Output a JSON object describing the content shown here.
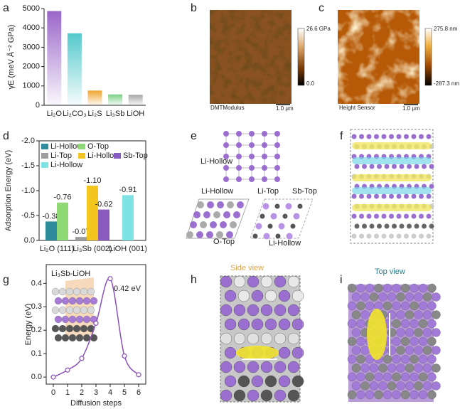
{
  "chart_data": [
    {
      "type": "bar",
      "panel_label": "a",
      "ylabel": "γE (meV Å⁻² GPa)",
      "categories": [
        "Li₂O",
        "Li₂CO₃",
        "Li₂S",
        "Li₃Sb",
        "LiOH"
      ],
      "values": [
        4870,
        3720,
        760,
        560,
        540
      ],
      "colors": [
        "#9a66c9",
        "#54c9cc",
        "#f0a531",
        "#7ccf86",
        "#a6a6a6"
      ],
      "ylim": [
        0,
        5000
      ],
      "yticks": [
        0,
        1000,
        2000,
        3000,
        4000,
        5000
      ]
    },
    {
      "type": "grouped_bar",
      "panel_label": "d",
      "ylabel": "Adsorption Energy (eV)",
      "categories": [
        "Li₂O (111)",
        "Li₃Sb (002)",
        "LiOH (001)"
      ],
      "series": [
        {
          "name": "Li-Hollow",
          "color": "#2e8c9c",
          "values": [
            -0.38,
            null,
            null
          ],
          "value_labels": [
            "-0.38",
            null,
            null
          ]
        },
        {
          "name": "O-Top",
          "color": "#8fd977",
          "values": [
            -0.76,
            null,
            null
          ],
          "value_labels": [
            "-0.76",
            null,
            null
          ]
        },
        {
          "name": "Li-Top",
          "color": "#9e9e9e",
          "values": [
            null,
            -0.07,
            null
          ],
          "value_labels": [
            null,
            "-0.07",
            null
          ]
        },
        {
          "name": "Li-Hollow",
          "color": "#f2c61f",
          "values": [
            null,
            -1.1,
            null
          ],
          "value_labels": [
            null,
            "-1.10",
            null
          ]
        },
        {
          "name": "Sb-Top",
          "color": "#8a5bbf",
          "values": [
            null,
            -0.62,
            null
          ],
          "value_labels": [
            null,
            "-0.62",
            null
          ]
        },
        {
          "name": "Li-Hollow",
          "color": "#7fe3e3",
          "values": [
            null,
            null,
            -0.91
          ],
          "value_labels": [
            null,
            null,
            "-0.91"
          ]
        }
      ],
      "ylim": [
        0,
        -2.0
      ],
      "yticks": [
        {
          "value": 0,
          "label": "0.0"
        },
        {
          "value": -0.5,
          "label": "-0.5"
        },
        {
          "value": -1,
          "label": "-1.0"
        },
        {
          "value": -1.5,
          "label": "-1.5"
        },
        {
          "value": -2,
          "label": "-2.0"
        }
      ],
      "legend": "upper left"
    },
    {
      "type": "line",
      "panel_label": "g",
      "title": "Li₃Sb-LiOH",
      "annotation": "0.42 eV",
      "xlabel": "Diffusion steps",
      "ylabel": "Energy (eV)",
      "x": [
        0,
        1,
        2,
        3,
        4,
        5,
        6
      ],
      "values": [
        0.0,
        0.03,
        0.08,
        0.23,
        0.42,
        0.09,
        0.01
      ],
      "color": "#8a4fb8",
      "xlim": [
        -0.5,
        6.5
      ],
      "ylim": [
        -0.03,
        0.48
      ],
      "xticks": [
        0,
        1,
        2,
        3,
        4,
        5,
        6
      ],
      "yticks": [
        {
          "value": 0,
          "label": "0.0"
        },
        {
          "value": 0.1,
          "label": "0.1"
        },
        {
          "value": 0.2,
          "label": "0.2"
        },
        {
          "value": 0.3,
          "label": "0.3"
        },
        {
          "value": 0.4,
          "label": "0.4"
        }
      ]
    }
  ],
  "images": {
    "b": {
      "panel_label": "b",
      "colorbar_max": "26.6 GPa",
      "colorbar_min": "0.0",
      "channel": "DMTModulus",
      "scale_bar": "1.0 μm"
    },
    "c": {
      "panel_label": "c",
      "colorbar_max": "275.8 nm",
      "colorbar_min": "-287.3 nm",
      "channel": "Height Sensor",
      "scale_bar": "1.0 μm"
    },
    "e": {
      "panel_label": "e",
      "labels": [
        "Li-Hollow",
        "Li-Hollow",
        "O-Top",
        "Li-Top",
        "Sb-Top",
        "Li-Hollow"
      ]
    },
    "f": {
      "panel_label": "f"
    },
    "h": {
      "panel_label": "h",
      "title": "Side view"
    },
    "i": {
      "panel_label": "i",
      "title": "Top view"
    }
  }
}
